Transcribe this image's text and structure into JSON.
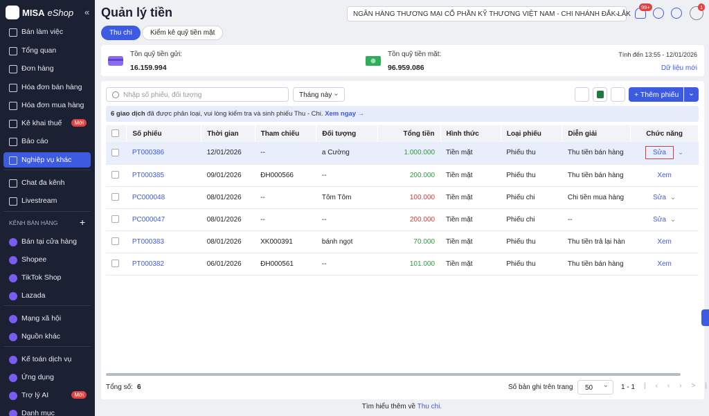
{
  "sidebar": {
    "logo": "MISA",
    "logo_suffix": "eShop",
    "collapse": "«",
    "menu": [
      {
        "label": "Bán làm việc"
      },
      {
        "label": "Tổng quan"
      },
      {
        "label": "Đơn hàng"
      },
      {
        "label": "Hóa đơn bán hàng"
      },
      {
        "label": "Hóa đơn mua hàng"
      },
      {
        "label": "Kê khai thuế",
        "badge": "Mới"
      },
      {
        "label": "Báo cáo"
      },
      {
        "label": "Nghiệp vụ khác"
      },
      {
        "label": "Chat đa kênh"
      },
      {
        "label": "Livestream"
      }
    ],
    "section": "KÊNH BÁN HÀNG",
    "section_add": "+",
    "channels": [
      {
        "label": "Bán tại cửa hàng"
      },
      {
        "label": "Shopee"
      },
      {
        "label": "TikTok Shop"
      },
      {
        "label": "Lazada"
      },
      {
        "label": "Mạng xã hội"
      },
      {
        "label": "Nguồn khác"
      },
      {
        "label": "Kế toán dịch vụ"
      },
      {
        "label": "Ứng dụng"
      },
      {
        "label": "Trợ lý AI",
        "badge": "Mới"
      },
      {
        "label": "Danh mục"
      }
    ]
  },
  "header": {
    "title": "Quản lý tiền",
    "bank": "NGÂN HÀNG THƯƠNG MẠI CỔ PHẦN KỸ THƯƠNG VIỆT NAM - CHI NHÁNH ĐẮK LẮK",
    "notifications": "99+",
    "avatar_badge": "1"
  },
  "tabs": [
    "Thu chi",
    "Kiểm kê quỹ tiền mặt"
  ],
  "summary": {
    "deposit_label": "Tồn quỹ tiền gửi:",
    "deposit": "16.159.994",
    "cash_label": "Tồn quỹ tiền mặt:",
    "cash": "96.959.086",
    "as_of": "Tính đến 13:55 - 12/01/2026",
    "refresh": "Dữ liệu mới"
  },
  "toolbar": {
    "search": "Nhập số phiếu, đối tượng",
    "period": "Tháng này",
    "add": "+ Thêm phiếu"
  },
  "banner": {
    "count": "6 giao dịch",
    "text": "đã được phân loại, vui lòng kiểm tra và sinh phiếu Thu - Chi.",
    "link": "Xem ngay →"
  },
  "table": {
    "columns": [
      "Số phiếu",
      "Thời gian",
      "Tham chiếu",
      "Đối tượng",
      "Tổng tiền",
      "Hình thức",
      "Loại phiếu",
      "Diễn giải",
      "Chức năng"
    ],
    "rows": [
      [
        "PT000386",
        "12/01/2026",
        "--",
        "a Cường",
        "1.000.000",
        "Tiền mặt",
        "Phiếu thu",
        "Thu tiền bán hàng",
        "Sửa"
      ],
      [
        "PT000385",
        "09/01/2026",
        "ĐH000566",
        "--",
        "200.000",
        "Tiền mặt",
        "Phiếu thu",
        "Thu tiền bán hàng",
        "Xem"
      ],
      [
        "PC000048",
        "08/01/2026",
        "--",
        "Tôm Tôm",
        "100.000",
        "Tiền mặt",
        "Phiếu chi",
        "Chi tiền mua hàng",
        "Sửa"
      ],
      [
        "PC000047",
        "08/01/2026",
        "--",
        "--",
        "200.000",
        "Tiền mặt",
        "Phiếu chi",
        "--",
        "Sửa"
      ],
      [
        "PT000383",
        "08/01/2026",
        "XK000391",
        "bánh ngọt",
        "70.000",
        "Tiền mặt",
        "Phiếu thu",
        "Thu tiền trả lại hàn",
        "Xem"
      ],
      [
        "PT000382",
        "06/01/2026",
        "ĐH000561",
        "--",
        "101.000",
        "Tiền mặt",
        "Phiếu thu",
        "Thu tiền bán hàng",
        "Xem"
      ]
    ]
  },
  "footer": {
    "total_label": "Tổng số:",
    "total": "6",
    "page_size_label": "Số bản ghi trên trang",
    "page_size": "50",
    "range": "1 - 1",
    "learn": "Tìm hiểu thêm về",
    "learn_link": "Thu chi."
  }
}
